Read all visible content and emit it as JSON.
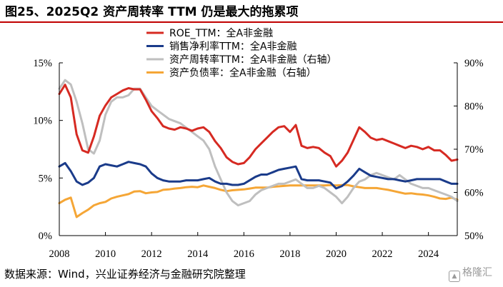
{
  "title": "图25、2025Q2 资产周转率 TTM 仍是最大的拖累项",
  "source": "数据来源：Wind，兴业证券经济与金融研究院整理",
  "watermark": "格隆汇",
  "watermark_icon": "logo-icon",
  "colors": {
    "roe": "#d62a22",
    "margin": "#1a3b8a",
    "turnover": "#bfbfbf",
    "leverage": "#f5a636",
    "title_rule": "#c00000"
  },
  "chart_data": {
    "type": "line",
    "x_ticks": [
      "2008",
      "2010",
      "2012",
      "2014",
      "2016",
      "2018",
      "2020",
      "2022",
      "2024"
    ],
    "xlim": [
      2008,
      2025.25
    ],
    "y_left": {
      "ticks": [
        "0%",
        "5%",
        "10%",
        "15%"
      ],
      "ylim": [
        0,
        15
      ]
    },
    "y_right": {
      "ticks": [
        "50%",
        "60%",
        "70%",
        "80%",
        "90%"
      ],
      "ylim": [
        50,
        90
      ]
    },
    "grid": false,
    "legend": "top-center",
    "series": [
      {
        "name": "ROE_TTM：全A非金融",
        "axis": "left",
        "color": "#d62a22",
        "x": [
          2008.0,
          2008.25,
          2008.5,
          2008.75,
          2009.0,
          2009.25,
          2009.5,
          2009.75,
          2010.0,
          2010.25,
          2010.5,
          2010.75,
          2011.0,
          2011.25,
          2011.5,
          2011.75,
          2012.0,
          2012.25,
          2012.5,
          2012.75,
          2013.0,
          2013.25,
          2013.5,
          2013.75,
          2014.0,
          2014.25,
          2014.5,
          2014.75,
          2015.0,
          2015.25,
          2015.5,
          2015.75,
          2016.0,
          2016.25,
          2016.5,
          2016.75,
          2017.0,
          2017.25,
          2017.5,
          2017.75,
          2018.0,
          2018.25,
          2018.5,
          2018.75,
          2019.0,
          2019.25,
          2019.5,
          2019.75,
          2020.0,
          2020.25,
          2020.5,
          2020.75,
          2021.0,
          2021.25,
          2021.5,
          2021.75,
          2022.0,
          2022.25,
          2022.5,
          2022.75,
          2023.0,
          2023.25,
          2023.5,
          2023.75,
          2024.0,
          2024.25,
          2024.5,
          2024.75,
          2025.0,
          2025.25
        ],
        "values": [
          12.3,
          13.1,
          12.0,
          8.8,
          7.4,
          7.2,
          8.6,
          10.4,
          11.3,
          12.0,
          12.3,
          12.6,
          12.8,
          12.7,
          12.7,
          11.8,
          10.8,
          10.2,
          9.5,
          9.3,
          9.2,
          9.4,
          9.3,
          9.1,
          9.3,
          9.4,
          9.0,
          8.2,
          7.6,
          6.8,
          6.4,
          6.2,
          6.3,
          6.8,
          7.5,
          8.0,
          8.5,
          9.0,
          9.4,
          9.5,
          9.0,
          9.6,
          7.8,
          7.6,
          7.7,
          7.6,
          7.2,
          6.9,
          6.0,
          6.5,
          7.2,
          8.3,
          9.4,
          9.0,
          8.5,
          8.3,
          8.4,
          8.2,
          8.0,
          7.8,
          7.6,
          7.8,
          7.7,
          7.5,
          7.7,
          7.4,
          7.4,
          7.0,
          6.5,
          6.6
        ]
      },
      {
        "name": "销售净利率TTM：全A非金融",
        "axis": "left",
        "color": "#1a3b8a",
        "x": [
          2008.0,
          2008.25,
          2008.5,
          2008.75,
          2009.0,
          2009.25,
          2009.5,
          2009.75,
          2010.0,
          2010.25,
          2010.5,
          2010.75,
          2011.0,
          2011.25,
          2011.5,
          2011.75,
          2012.0,
          2012.25,
          2012.5,
          2012.75,
          2013.0,
          2013.25,
          2013.5,
          2013.75,
          2014.0,
          2014.25,
          2014.5,
          2014.75,
          2015.0,
          2015.25,
          2015.5,
          2015.75,
          2016.0,
          2016.25,
          2016.5,
          2016.75,
          2017.0,
          2017.25,
          2017.5,
          2017.75,
          2018.0,
          2018.25,
          2018.5,
          2018.75,
          2019.0,
          2019.25,
          2019.5,
          2019.75,
          2020.0,
          2020.25,
          2020.5,
          2020.75,
          2021.0,
          2021.25,
          2021.5,
          2021.75,
          2022.0,
          2022.25,
          2022.5,
          2022.75,
          2023.0,
          2023.25,
          2023.5,
          2023.75,
          2024.0,
          2024.25,
          2024.5,
          2024.75,
          2025.0,
          2025.25
        ],
        "values": [
          6.0,
          6.3,
          5.6,
          4.7,
          4.4,
          4.6,
          5.0,
          6.0,
          6.2,
          6.1,
          6.0,
          6.2,
          6.4,
          6.3,
          6.2,
          6.0,
          5.4,
          5.0,
          4.8,
          4.7,
          4.7,
          4.7,
          4.8,
          4.8,
          4.8,
          4.9,
          5.0,
          4.7,
          4.5,
          4.5,
          4.4,
          4.4,
          4.5,
          4.8,
          5.1,
          5.3,
          5.3,
          5.5,
          5.7,
          5.8,
          5.9,
          6.0,
          4.9,
          4.8,
          4.8,
          4.8,
          4.7,
          4.6,
          4.1,
          4.3,
          4.7,
          5.2,
          5.8,
          5.5,
          5.2,
          5.1,
          5.0,
          4.9,
          4.9,
          4.8,
          4.7,
          4.8,
          4.9,
          4.9,
          4.9,
          4.9,
          4.9,
          4.7,
          4.5,
          4.5
        ]
      },
      {
        "name": "资产周转率TTM：全A非金融（右轴）",
        "axis": "right",
        "color": "#bfbfbf",
        "x": [
          2008.0,
          2008.25,
          2008.5,
          2008.75,
          2009.0,
          2009.25,
          2009.5,
          2009.75,
          2010.0,
          2010.25,
          2010.5,
          2010.75,
          2011.0,
          2011.25,
          2011.5,
          2011.75,
          2012.0,
          2012.25,
          2012.5,
          2012.75,
          2013.0,
          2013.25,
          2013.5,
          2013.75,
          2014.0,
          2014.25,
          2014.5,
          2014.75,
          2015.0,
          2015.25,
          2015.5,
          2015.75,
          2016.0,
          2016.25,
          2016.5,
          2016.75,
          2017.0,
          2017.25,
          2017.5,
          2017.75,
          2018.0,
          2018.25,
          2018.5,
          2018.75,
          2019.0,
          2019.25,
          2019.5,
          2019.75,
          2020.0,
          2020.25,
          2020.5,
          2020.75,
          2021.0,
          2021.25,
          2021.5,
          2021.75,
          2022.0,
          2022.25,
          2022.5,
          2022.75,
          2023.0,
          2023.25,
          2023.5,
          2023.75,
          2024.0,
          2024.25,
          2024.5,
          2024.75,
          2025.0,
          2025.25
        ],
        "values": [
          84.0,
          86.0,
          85.0,
          81.0,
          76.0,
          70.0,
          69.0,
          72.0,
          78.0,
          81.0,
          82.0,
          82.0,
          82.5,
          84.0,
          84.0,
          82.0,
          80.0,
          79.0,
          78.0,
          77.0,
          76.5,
          76.0,
          75.0,
          74.0,
          73.0,
          72.0,
          70.0,
          66.0,
          63.0,
          60.0,
          58.0,
          57.0,
          57.5,
          58.0,
          59.5,
          60.5,
          61.0,
          61.5,
          62.0,
          62.0,
          62.5,
          63.0,
          62.0,
          61.0,
          61.0,
          61.5,
          61.0,
          60.0,
          59.0,
          57.5,
          59.0,
          61.0,
          62.5,
          63.0,
          64.0,
          64.5,
          64.0,
          63.5,
          63.0,
          64.0,
          63.0,
          62.0,
          61.5,
          61.0,
          61.0,
          60.5,
          60.0,
          59.5,
          59.0,
          58.0
        ]
      },
      {
        "name": "资产负债率：全A非金融（右轴）",
        "axis": "right",
        "color": "#f5a636",
        "x": [
          2008.0,
          2008.25,
          2008.5,
          2008.75,
          2009.0,
          2009.25,
          2009.5,
          2009.75,
          2010.0,
          2010.25,
          2010.5,
          2010.75,
          2011.0,
          2011.25,
          2011.5,
          2011.75,
          2012.0,
          2012.25,
          2012.5,
          2012.75,
          2013.0,
          2013.25,
          2013.5,
          2013.75,
          2014.0,
          2014.25,
          2014.5,
          2014.75,
          2015.0,
          2015.25,
          2015.5,
          2015.75,
          2016.0,
          2016.25,
          2016.5,
          2016.75,
          2017.0,
          2017.25,
          2017.5,
          2017.75,
          2018.0,
          2018.25,
          2018.5,
          2018.75,
          2019.0,
          2019.25,
          2019.5,
          2019.75,
          2020.0,
          2020.25,
          2020.5,
          2020.75,
          2021.0,
          2021.25,
          2021.5,
          2021.75,
          2022.0,
          2022.25,
          2022.5,
          2022.75,
          2023.0,
          2023.25,
          2023.5,
          2023.75,
          2024.0,
          2024.25,
          2024.5,
          2024.75,
          2025.0,
          2025.25
        ],
        "values": [
          57.5,
          58.3,
          58.8,
          54.3,
          55.2,
          56.0,
          57.0,
          57.5,
          57.8,
          58.6,
          59.0,
          59.3,
          59.6,
          60.2,
          60.3,
          59.8,
          60.0,
          60.1,
          60.6,
          60.7,
          60.9,
          61.0,
          61.2,
          61.3,
          61.2,
          61.6,
          61.3,
          61.0,
          60.6,
          60.3,
          60.5,
          60.6,
          60.7,
          60.9,
          61.1,
          61.1,
          61.1,
          61.3,
          61.4,
          61.5,
          61.6,
          61.6,
          61.6,
          61.6,
          61.6,
          61.6,
          61.6,
          61.7,
          61.6,
          61.7,
          61.7,
          61.4,
          61.2,
          61.0,
          61.0,
          61.0,
          60.8,
          60.6,
          60.3,
          60.0,
          59.7,
          59.8,
          59.6,
          59.5,
          59.3,
          59.0,
          58.6,
          58.5,
          58.8,
          58.3
        ]
      }
    ]
  }
}
